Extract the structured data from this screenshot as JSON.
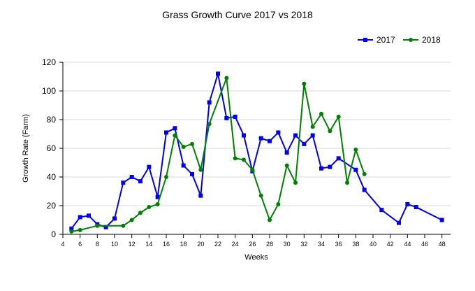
{
  "chart_data": {
    "type": "line",
    "title": "Grass Growth Curve 2017 vs 2018",
    "xlabel": "Weeks",
    "ylabel": "Growth Rate (Farm)",
    "xlim": [
      4,
      49
    ],
    "ylim": [
      0,
      120
    ],
    "x_ticks": [
      "4",
      "6",
      "8",
      "10",
      "12",
      "14",
      "16",
      "18",
      "20",
      "22",
      "24",
      "26",
      "28",
      "30",
      "32",
      "34",
      "36",
      "38",
      "40",
      "42",
      "44",
      "46",
      "48"
    ],
    "y_ticks": [
      "0",
      "20",
      "40",
      "60",
      "80",
      "100",
      "120"
    ],
    "grid": "horizontal",
    "legend_position": "top-right",
    "series": [
      {
        "name": "2017",
        "color": "#0000ee",
        "marker": "square",
        "points": [
          [
            5,
            4
          ],
          [
            6,
            12
          ],
          [
            7,
            13
          ],
          [
            8,
            7
          ],
          [
            9,
            5
          ],
          [
            10,
            11
          ],
          [
            11,
            36
          ],
          [
            12,
            40
          ],
          [
            13,
            37
          ],
          [
            14,
            47
          ],
          [
            15,
            26
          ],
          [
            16,
            71
          ],
          [
            17,
            74
          ],
          [
            18,
            48
          ],
          [
            19,
            42
          ],
          [
            20,
            27
          ],
          [
            21,
            92
          ],
          [
            22,
            112
          ],
          [
            23,
            81
          ],
          [
            24,
            82
          ],
          [
            25,
            69
          ],
          [
            26,
            44
          ],
          [
            27,
            67
          ],
          [
            28,
            65
          ],
          [
            29,
            71
          ],
          [
            30,
            57
          ],
          [
            31,
            69
          ],
          [
            32,
            63
          ],
          [
            33,
            69
          ],
          [
            34,
            46
          ],
          [
            35,
            47
          ],
          [
            36,
            53
          ],
          [
            38,
            45
          ],
          [
            39,
            31
          ],
          [
            41,
            17
          ],
          [
            43,
            8
          ],
          [
            44,
            21
          ],
          [
            45,
            19
          ],
          [
            48,
            10
          ]
        ]
      },
      {
        "name": "2018",
        "color": "#008000",
        "marker": "circle",
        "points": [
          [
            5,
            2
          ],
          [
            6,
            3
          ],
          [
            8,
            6
          ],
          [
            11,
            6
          ],
          [
            12,
            10
          ],
          [
            13,
            15
          ],
          [
            14,
            19
          ],
          [
            15,
            21
          ],
          [
            16,
            40
          ],
          [
            17,
            69
          ],
          [
            18,
            61
          ],
          [
            19,
            63
          ],
          [
            20,
            45
          ],
          [
            21,
            77
          ],
          [
            23,
            109
          ],
          [
            24,
            53
          ],
          [
            25,
            52
          ],
          [
            26,
            45
          ],
          [
            27,
            27
          ],
          [
            28,
            10
          ],
          [
            29,
            21
          ],
          [
            30,
            48
          ],
          [
            31,
            36
          ],
          [
            32,
            105
          ],
          [
            33,
            75
          ],
          [
            34,
            84
          ],
          [
            35,
            72
          ],
          [
            36,
            82
          ],
          [
            37,
            36
          ],
          [
            38,
            59
          ],
          [
            39,
            42
          ]
        ]
      }
    ]
  }
}
